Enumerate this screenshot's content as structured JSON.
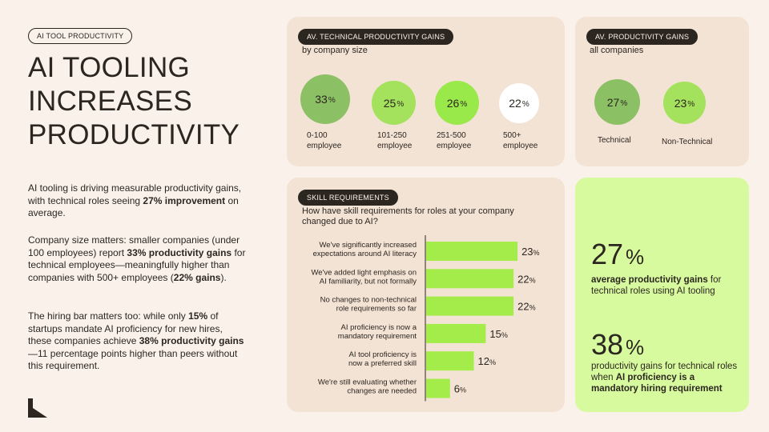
{
  "tag": "AI TOOL PRODUCTIVITY",
  "headline": [
    "AI TOOLING",
    "INCREASES",
    "PRODUCTIVITY"
  ],
  "paragraphs": {
    "p1": [
      "AI tooling is driving measurable productivity gains, with technical roles seeing ",
      "27% improvement",
      " on average."
    ],
    "p2": [
      "Company size matters: smaller companies (under 100 employees) report ",
      "33% productivity gains",
      " for technical employees—meaningfully higher than companies with 500+ employees (",
      "22% gains",
      ")."
    ],
    "p3": [
      "The hiring bar matters too: while only ",
      "15%",
      " of startups mandate AI proficiency for new hires, these companies achieve ",
      "38% productivity gains",
      "—11 percentage points higher than peers without this requirement."
    ]
  },
  "colors": {
    "dark_green": "#8cc065",
    "mid_green": "#a4e15c",
    "bright_green": "#9ae94a",
    "white": "#ffffff",
    "bar": "#a4ec4a",
    "highlight_bg": "#d8fa9e"
  },
  "chart_data": [
    {
      "type": "bubble",
      "title": "AV. TECHNICAL PRODUCTIVITY GAINS",
      "subtitle": "by company size",
      "unit": "%",
      "categories": [
        [
          "0-100",
          "employee"
        ],
        [
          "101-250",
          "employee"
        ],
        [
          "251-500",
          "employee"
        ],
        [
          "500+",
          "employee"
        ]
      ],
      "values": [
        33,
        25,
        26,
        22
      ]
    },
    {
      "type": "bubble",
      "title": "AV. PRODUCTIVITY GAINS",
      "subtitle": "all companies",
      "unit": "%",
      "categories": [
        "Technical",
        "Non-Technical"
      ],
      "values": [
        27,
        23
      ]
    },
    {
      "type": "bar",
      "orientation": "horizontal",
      "title": "SKILL REQUIREMENTS",
      "subtitle": "How have skill requirements for roles at your company changed due to AI?",
      "unit": "%",
      "categories": [
        [
          "We've significantly increased",
          "expectations around AI literacy"
        ],
        [
          "We've added light emphasis on",
          "AI familiarity, but not formally"
        ],
        [
          "No changes to non-technical",
          "role requirements so far"
        ],
        [
          "AI proficiency is now a",
          "mandatory requirement"
        ],
        [
          "AI tool proficiency is",
          "now a preferred skill"
        ],
        [
          "We're still evaluating whether",
          "changes are needed"
        ]
      ],
      "values": [
        23,
        22,
        22,
        15,
        12,
        6
      ],
      "xlim": [
        0,
        25
      ]
    }
  ],
  "highlights": [
    {
      "value": "27",
      "unit": "%",
      "text": [
        "",
        "average productivity gains",
        " for technical roles using AI tooling"
      ]
    },
    {
      "value": "38",
      "unit": "%",
      "text": [
        "productivity gains for technical roles when ",
        "AI proficiency is a mandatory hiring requirement",
        ""
      ]
    }
  ]
}
